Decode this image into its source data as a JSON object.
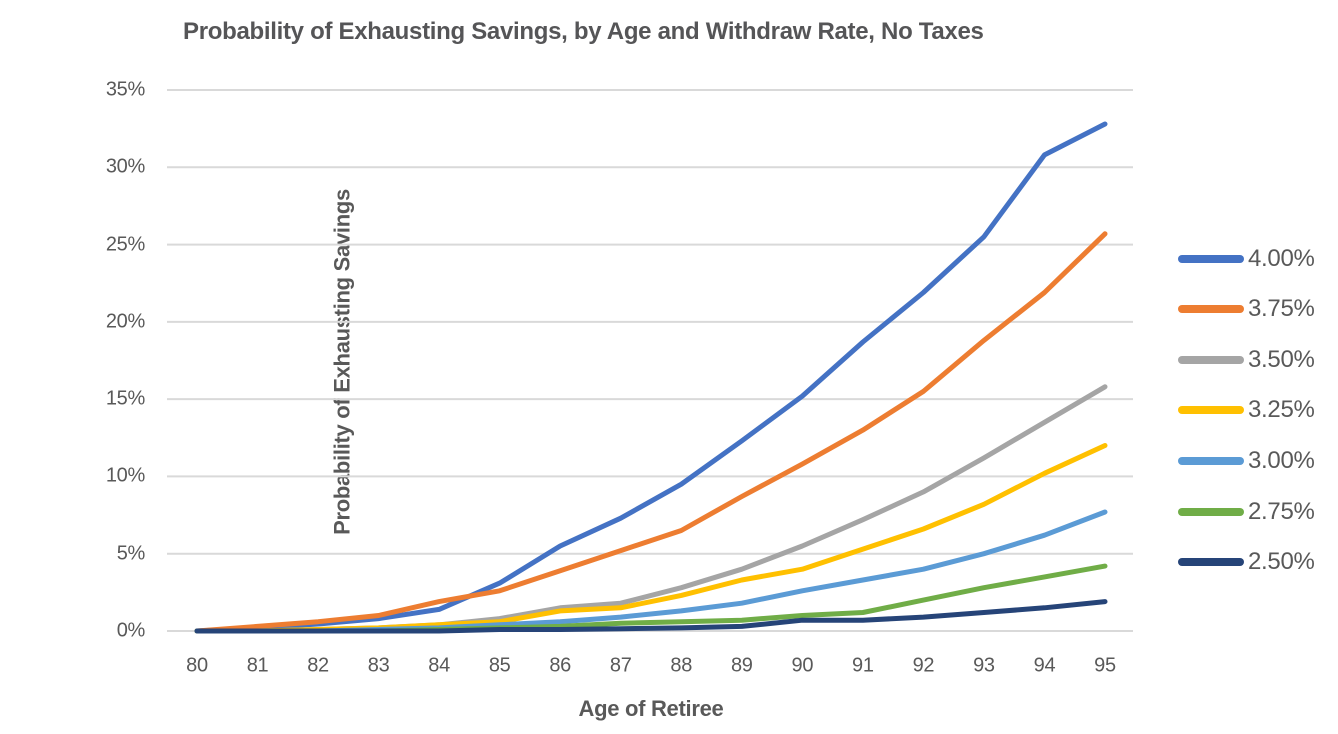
{
  "text_color": "#595959",
  "title_color": "#555557",
  "grid_color": "#D9D9D9",
  "background_color": "#FFFFFF",
  "chart_data": {
    "type": "line",
    "title": "Probability of Exhausting Savings, by Age and Withdraw Rate, No Taxes",
    "xlabel": "Age of Retiree",
    "ylabel": "Probability of Exhausting Savings",
    "x": [
      80,
      81,
      82,
      83,
      84,
      85,
      86,
      87,
      88,
      89,
      90,
      91,
      92,
      93,
      94,
      95
    ],
    "x_tick_labels": [
      "80",
      "81",
      "82",
      "83",
      "84",
      "85",
      "86",
      "87",
      "88",
      "89",
      "90",
      "91",
      "92",
      "93",
      "94",
      "95"
    ],
    "y_ticks": [
      {
        "value": 0,
        "label": "0%"
      },
      {
        "value": 5,
        "label": "5%"
      },
      {
        "value": 10,
        "label": "10%"
      },
      {
        "value": 15,
        "label": "15%"
      },
      {
        "value": 20,
        "label": "20%"
      },
      {
        "value": 25,
        "label": "25%"
      },
      {
        "value": 30,
        "label": "30%"
      },
      {
        "value": 35,
        "label": "35%"
      }
    ],
    "ylim": [
      0,
      35
    ],
    "grid": "horizontal",
    "legend_position": "right",
    "series": [
      {
        "name": "4.00%",
        "color": "#4472C4",
        "values": [
          0.0,
          0.2,
          0.45,
          0.8,
          1.4,
          3.1,
          5.5,
          7.3,
          9.5,
          12.3,
          15.2,
          18.7,
          21.9,
          25.5,
          30.8,
          32.8
        ]
      },
      {
        "name": "3.75%",
        "color": "#ED7D31",
        "values": [
          0.0,
          0.3,
          0.6,
          1.0,
          1.9,
          2.6,
          3.9,
          5.2,
          6.5,
          8.7,
          10.8,
          13.0,
          15.5,
          18.8,
          21.9,
          25.7
        ]
      },
      {
        "name": "3.50%",
        "color": "#A5A5A5",
        "values": [
          0.0,
          0.0,
          0.1,
          0.2,
          0.4,
          0.8,
          1.5,
          1.8,
          2.8,
          4.0,
          5.5,
          7.2,
          9.0,
          11.2,
          13.5,
          15.8
        ]
      },
      {
        "name": "3.25%",
        "color": "#FFC000",
        "values": [
          0.0,
          0.0,
          0.1,
          0.2,
          0.4,
          0.6,
          1.3,
          1.5,
          2.3,
          3.3,
          4.0,
          5.3,
          6.6,
          8.2,
          10.2,
          12.0
        ]
      },
      {
        "name": "3.00%",
        "color": "#5B9BD5",
        "values": [
          0.0,
          0.0,
          0.0,
          0.1,
          0.2,
          0.4,
          0.6,
          0.9,
          1.3,
          1.8,
          2.6,
          3.3,
          4.0,
          5.0,
          6.2,
          7.7
        ]
      },
      {
        "name": "2.75%",
        "color": "#70AD47",
        "values": [
          0.0,
          0.0,
          0.0,
          0.0,
          0.1,
          0.2,
          0.3,
          0.5,
          0.6,
          0.7,
          1.0,
          1.2,
          2.0,
          2.8,
          3.5,
          4.2
        ]
      },
      {
        "name": "2.50%",
        "color": "#264478",
        "values": [
          0.0,
          0.0,
          0.0,
          0.0,
          0.0,
          0.1,
          0.1,
          0.15,
          0.2,
          0.3,
          0.7,
          0.7,
          0.9,
          1.2,
          1.5,
          1.9
        ]
      }
    ]
  }
}
